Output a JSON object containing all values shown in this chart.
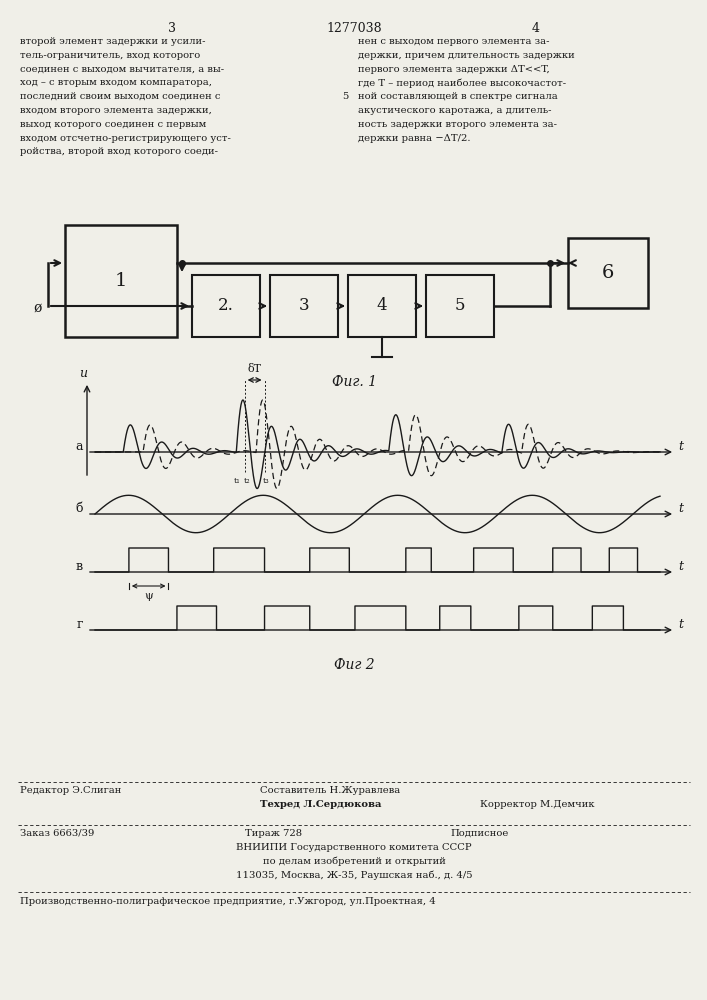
{
  "bg_color": "#f0efe8",
  "line_color": "#1a1a1a",
  "title": "1277038",
  "page_left": "3",
  "page_right": "4",
  "fig1_caption": "Фиг. 1",
  "fig2_caption": "Фиг 2",
  "col1_text": [
    "второй элемент задержки и усили-",
    "тель-ограничитель, вход которого",
    "соединен с выходом вычитателя, а вы-",
    "ход – с вторым входом компаратора,",
    "последний своим выходом соединен с",
    "входом второго элемента задержки,",
    "выход которого соединен с первым",
    "входом отсчетно-регистрирующего уст-",
    "ройства, второй вход которого соеди-"
  ],
  "col2_num": "5",
  "col2_text": [
    "нен с выходом первого элемента за-",
    "держки, причем длительность задержки",
    "первого элемента задержки ΔT<<T,",
    "где T – период наиболее высокочастот-",
    "ной составляющей в спектре сигнала",
    "акустического каротажа, а длитель-",
    "ность задержки второго элемента за-",
    "держки равна −ΔT/2."
  ],
  "fn_editor": "Редактор Э.Слиган",
  "fn_composer": "Составитель Н.Журавлева",
  "fn_tech": "Техред Л.Сердюкова",
  "fn_corrector": "Корректор М.Демчик",
  "fn_order": "Заказ 6663/39",
  "fn_tirazh": "Тираж 728",
  "fn_podp": "Подписное",
  "fn_vniishi": "ВНИИПИ Государственного комитета СССР",
  "fn_po_delam": "по делам изобретений и открытий",
  "fn_address": "113035, Москва, Ж-35, Раушская наб., д. 4/5",
  "fn_last": "Производственно-полиграфическое предприятие, г.Ужгород, ул.Проектная, 4"
}
